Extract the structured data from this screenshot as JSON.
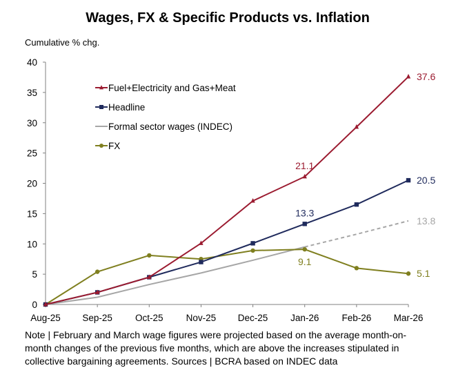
{
  "chart_data": {
    "type": "line",
    "title": "Wages, FX & Specific Products vs. Inflation",
    "ylabel": "Cumulative % chg.",
    "xlabel": "",
    "categories": [
      "Aug-25",
      "Sep-25",
      "Oct-25",
      "Nov-25",
      "Dec-25",
      "Jan-26",
      "Feb-26",
      "Mar-26"
    ],
    "ylim": [
      0,
      40
    ],
    "yticks": [
      0,
      5,
      10,
      15,
      20,
      25,
      30,
      35,
      40
    ],
    "grid": false,
    "legend_position": "top-left",
    "series": [
      {
        "name": "Fuel+Electricity and Gas+Meat",
        "key": "fuel",
        "color": "#9B1B30",
        "marker": "triangle",
        "values": [
          0,
          2.0,
          4.5,
          10.1,
          17.1,
          21.1,
          29.3,
          37.6
        ],
        "labels": [
          {
            "index": 5,
            "text": "21.1",
            "pos": "above"
          },
          {
            "index": 7,
            "text": "37.6",
            "pos": "right"
          }
        ]
      },
      {
        "name": "Headline",
        "key": "headline",
        "color": "#1F2A5C",
        "marker": "square",
        "values": [
          0,
          2.0,
          4.5,
          7.0,
          10.1,
          13.3,
          16.5,
          20.5
        ],
        "labels": [
          {
            "index": 5,
            "text": "13.3",
            "pos": "above"
          },
          {
            "index": 7,
            "text": "20.5",
            "pos": "right"
          }
        ]
      },
      {
        "name": "Formal sector wages (INDEC)",
        "key": "wages",
        "color": "#A6A6A6",
        "marker": "none",
        "values": [
          0,
          1.2,
          3.3,
          5.2,
          7.3,
          9.5,
          11.6,
          13.8
        ],
        "projected_from_index": 5,
        "labels": [
          {
            "index": 7,
            "text": "13.8",
            "pos": "right"
          }
        ]
      },
      {
        "name": "FX",
        "key": "fx",
        "color": "#7F7F1F",
        "marker": "circle",
        "values": [
          0,
          5.4,
          8.1,
          7.5,
          8.9,
          9.1,
          6.0,
          5.1
        ],
        "labels": [
          {
            "index": 5,
            "text": "9.1",
            "pos": "below"
          },
          {
            "index": 7,
            "text": "5.1",
            "pos": "right"
          }
        ]
      }
    ]
  },
  "note": "Note | February and March wage figures were projected based on the average month-on-month changes of the previous five months, which are above the increases stipulated in collective bargaining agreements. Sources | BCRA based on INDEC data"
}
